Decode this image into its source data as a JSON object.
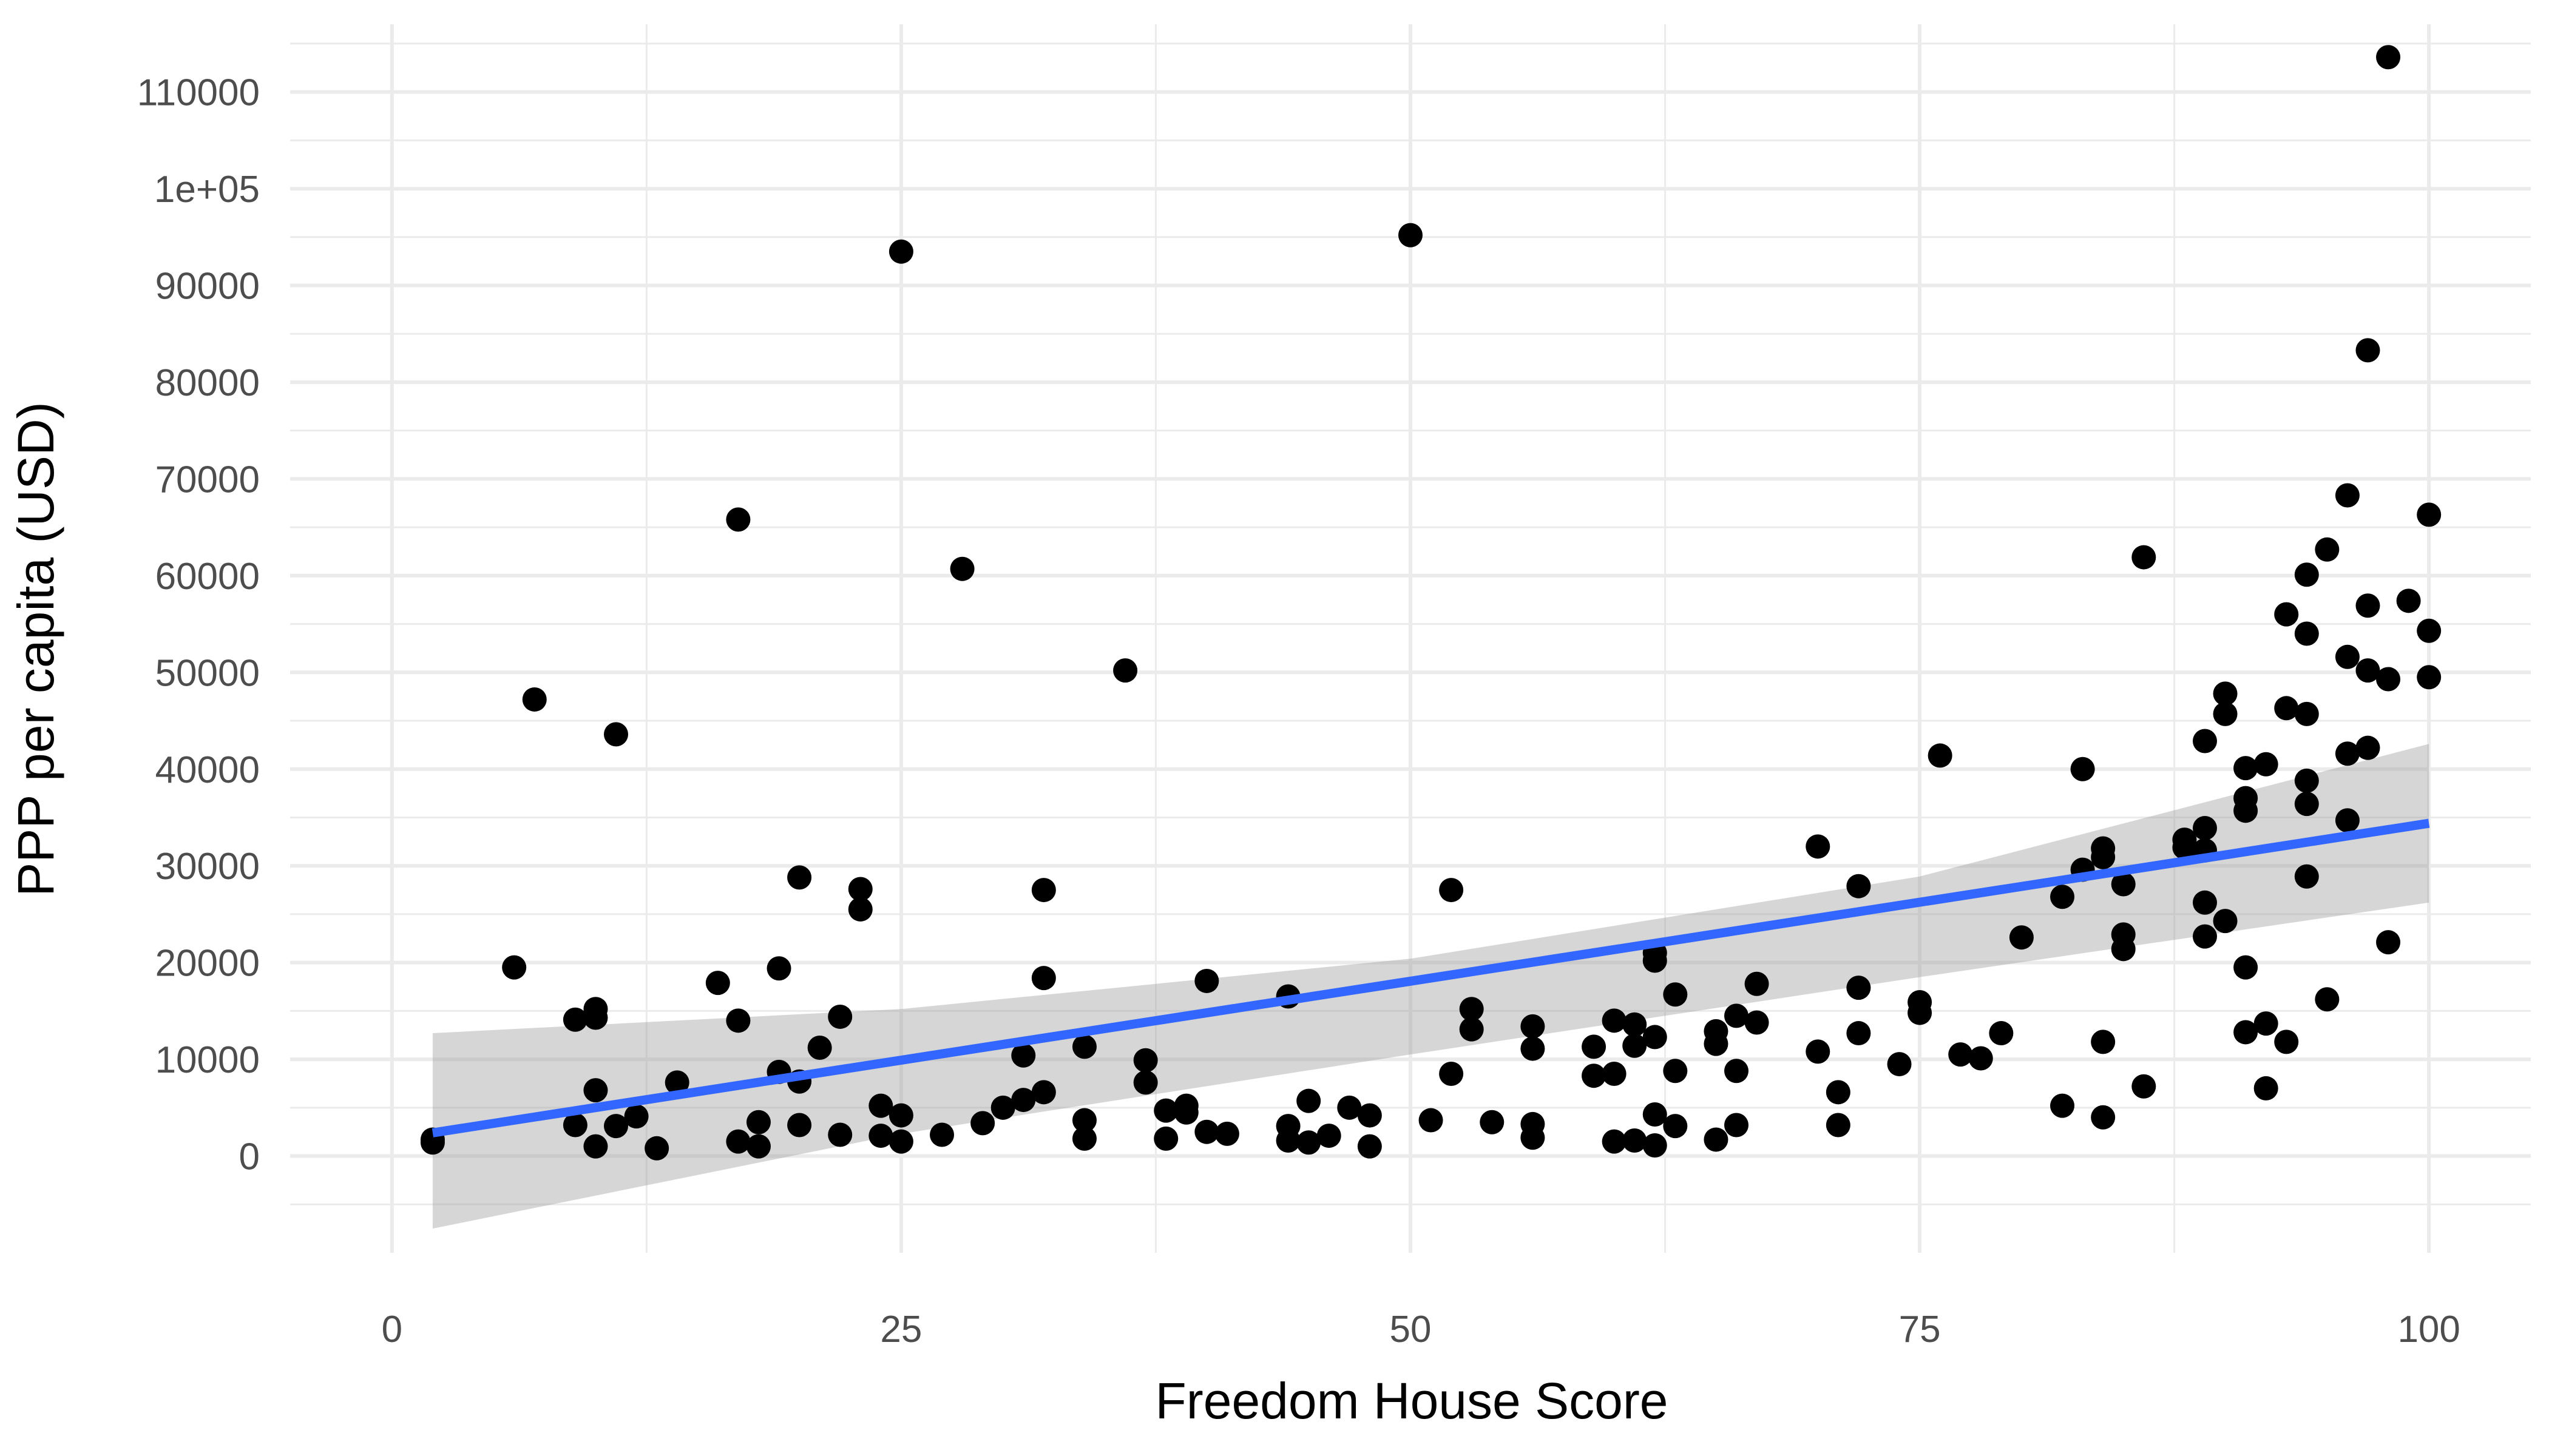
{
  "chart_data": {
    "type": "scatter",
    "title": "",
    "xlabel": "Freedom House Score",
    "ylabel": "PPP per capita (USD)",
    "xlim": [
      -5,
      105
    ],
    "ylim": [
      -10000,
      117000
    ],
    "x_ticks": [
      0,
      25,
      50,
      75,
      100
    ],
    "x_tick_labels": [
      "0",
      "25",
      "50",
      "75",
      "100"
    ],
    "y_ticks": [
      0,
      10000,
      20000,
      30000,
      40000,
      50000,
      60000,
      70000,
      80000,
      90000,
      100000,
      110000
    ],
    "y_tick_labels": [
      "0",
      "10000",
      "20000",
      "30000",
      "40000",
      "50000",
      "60000",
      "70000",
      "80000",
      "90000",
      "1e+05",
      "110000"
    ],
    "grid": true,
    "legend": "none",
    "colors": {
      "points": "#000000",
      "fit_line": "#3366ff",
      "confidence_band": "#999999",
      "grid": "#ebebeb"
    },
    "points": [
      [
        2,
        1700
      ],
      [
        2,
        1400
      ],
      [
        6,
        19500
      ],
      [
        7,
        47200
      ],
      [
        9,
        14100
      ],
      [
        9,
        3200
      ],
      [
        10,
        15200
      ],
      [
        10,
        14300
      ],
      [
        10,
        6800
      ],
      [
        10,
        1000
      ],
      [
        11,
        43600
      ],
      [
        11,
        3100
      ],
      [
        12,
        4100
      ],
      [
        13,
        800
      ],
      [
        14,
        7600
      ],
      [
        16,
        17900
      ],
      [
        17,
        65800
      ],
      [
        17,
        14000
      ],
      [
        17,
        1500
      ],
      [
        18,
        3500
      ],
      [
        18,
        1000
      ],
      [
        19,
        19400
      ],
      [
        19,
        8700
      ],
      [
        20,
        28800
      ],
      [
        20,
        7700
      ],
      [
        20,
        3200
      ],
      [
        21,
        11200
      ],
      [
        22,
        14400
      ],
      [
        22,
        2200
      ],
      [
        23,
        27600
      ],
      [
        23,
        25500
      ],
      [
        24,
        5200
      ],
      [
        24,
        2100
      ],
      [
        25,
        93500
      ],
      [
        25,
        4200
      ],
      [
        25,
        1500
      ],
      [
        27,
        2200
      ],
      [
        28,
        60700
      ],
      [
        29,
        3400
      ],
      [
        30,
        5000
      ],
      [
        31,
        10400
      ],
      [
        31,
        5800
      ],
      [
        32,
        27500
      ],
      [
        32,
        18400
      ],
      [
        32,
        6600
      ],
      [
        34,
        11300
      ],
      [
        34,
        3700
      ],
      [
        34,
        1800
      ],
      [
        36,
        50200
      ],
      [
        37,
        9900
      ],
      [
        37,
        7600
      ],
      [
        38,
        4700
      ],
      [
        38,
        1800
      ],
      [
        39,
        5200
      ],
      [
        39,
        4500
      ],
      [
        40,
        18100
      ],
      [
        40,
        2500
      ],
      [
        41,
        2300
      ],
      [
        44,
        16500
      ],
      [
        44,
        3100
      ],
      [
        44,
        1600
      ],
      [
        45,
        5700
      ],
      [
        45,
        1400
      ],
      [
        46,
        2100
      ],
      [
        47,
        5000
      ],
      [
        48,
        4200
      ],
      [
        48,
        1000
      ],
      [
        50,
        95200
      ],
      [
        51,
        3700
      ],
      [
        52,
        27500
      ],
      [
        52,
        8500
      ],
      [
        53,
        15200
      ],
      [
        53,
        13100
      ],
      [
        54,
        3500
      ],
      [
        56,
        13400
      ],
      [
        56,
        11100
      ],
      [
        56,
        3300
      ],
      [
        56,
        1900
      ],
      [
        59,
        11300
      ],
      [
        59,
        8300
      ],
      [
        60,
        14000
      ],
      [
        60,
        8500
      ],
      [
        60,
        1500
      ],
      [
        61,
        13600
      ],
      [
        61,
        11400
      ],
      [
        61,
        1600
      ],
      [
        62,
        21000
      ],
      [
        62,
        20200
      ],
      [
        62,
        12300
      ],
      [
        62,
        4300
      ],
      [
        62,
        1100
      ],
      [
        63,
        16700
      ],
      [
        63,
        8800
      ],
      [
        63,
        3100
      ],
      [
        65,
        12900
      ],
      [
        65,
        11600
      ],
      [
        65,
        1700
      ],
      [
        66,
        14500
      ],
      [
        66,
        8800
      ],
      [
        66,
        3200
      ],
      [
        67,
        17800
      ],
      [
        67,
        13800
      ],
      [
        70,
        32000
      ],
      [
        70,
        10800
      ],
      [
        71,
        6600
      ],
      [
        71,
        3200
      ],
      [
        72,
        27900
      ],
      [
        72,
        17400
      ],
      [
        72,
        12700
      ],
      [
        74,
        9500
      ],
      [
        75,
        15900
      ],
      [
        75,
        14800
      ],
      [
        76,
        41400
      ],
      [
        77,
        10500
      ],
      [
        78,
        10100
      ],
      [
        79,
        12700
      ],
      [
        80,
        22600
      ],
      [
        82,
        26800
      ],
      [
        82,
        5200
      ],
      [
        83,
        40000
      ],
      [
        83,
        29600
      ],
      [
        84,
        31800
      ],
      [
        84,
        30900
      ],
      [
        84,
        11800
      ],
      [
        84,
        4000
      ],
      [
        85,
        28100
      ],
      [
        85,
        22900
      ],
      [
        85,
        21400
      ],
      [
        86,
        61900
      ],
      [
        86,
        7200
      ],
      [
        88,
        32700
      ],
      [
        88,
        31900
      ],
      [
        89,
        42900
      ],
      [
        89,
        33900
      ],
      [
        89,
        31600
      ],
      [
        89,
        26200
      ],
      [
        89,
        22700
      ],
      [
        90,
        47800
      ],
      [
        90,
        45700
      ],
      [
        90,
        24300
      ],
      [
        91,
        40100
      ],
      [
        91,
        37000
      ],
      [
        91,
        35700
      ],
      [
        91,
        19500
      ],
      [
        91,
        12800
      ],
      [
        92,
        40500
      ],
      [
        92,
        13700
      ],
      [
        92,
        7000
      ],
      [
        93,
        56000
      ],
      [
        93,
        46300
      ],
      [
        93,
        11800
      ],
      [
        94,
        60100
      ],
      [
        94,
        54000
      ],
      [
        94,
        45700
      ],
      [
        94,
        38800
      ],
      [
        94,
        36400
      ],
      [
        94,
        28900
      ],
      [
        95,
        62700
      ],
      [
        95,
        16200
      ],
      [
        96,
        68300
      ],
      [
        96,
        51600
      ],
      [
        96,
        41600
      ],
      [
        96,
        34700
      ],
      [
        97,
        83300
      ],
      [
        97,
        56900
      ],
      [
        97,
        50200
      ],
      [
        97,
        42200
      ],
      [
        98,
        113600
      ],
      [
        98,
        49300
      ],
      [
        98,
        22100
      ],
      [
        99,
        57400
      ],
      [
        100,
        66300
      ],
      [
        100,
        54300
      ],
      [
        100,
        49500
      ]
    ],
    "fit_line": {
      "x": [
        2,
        100
      ],
      "y": [
        2400,
        34400
      ]
    },
    "confidence_band": {
      "x": [
        2,
        25,
        50,
        75,
        100
      ],
      "lower": [
        -7500,
        2300,
        10500,
        18500,
        26200
      ],
      "upper": [
        12700,
        15200,
        20400,
        28900,
        42600
      ]
    }
  }
}
